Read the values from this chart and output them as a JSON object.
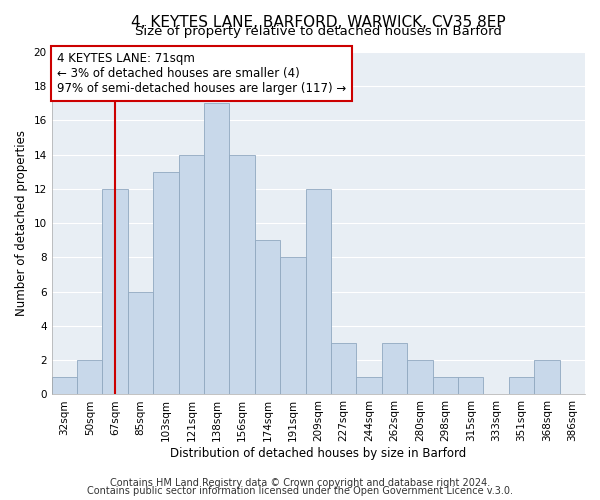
{
  "title": "4, KEYTES LANE, BARFORD, WARWICK, CV35 8EP",
  "subtitle": "Size of property relative to detached houses in Barford",
  "xlabel": "Distribution of detached houses by size in Barford",
  "ylabel": "Number of detached properties",
  "bar_color": "#c8d8ea",
  "bar_edge_color": "#90a8c0",
  "categories": [
    "32sqm",
    "50sqm",
    "67sqm",
    "85sqm",
    "103sqm",
    "121sqm",
    "138sqm",
    "156sqm",
    "174sqm",
    "191sqm",
    "209sqm",
    "227sqm",
    "244sqm",
    "262sqm",
    "280sqm",
    "298sqm",
    "315sqm",
    "333sqm",
    "351sqm",
    "368sqm",
    "386sqm"
  ],
  "values": [
    1,
    2,
    12,
    6,
    13,
    14,
    17,
    14,
    9,
    8,
    12,
    3,
    1,
    3,
    2,
    1,
    1,
    0,
    1,
    2,
    0
  ],
  "vline_x": 2,
  "vline_color": "#cc0000",
  "annotation_text": "4 KEYTES LANE: 71sqm\n← 3% of detached houses are smaller (4)\n97% of semi-detached houses are larger (117) →",
  "annotation_box_color": "#ffffff",
  "annotation_box_edge": "#cc0000",
  "ylim": [
    0,
    20
  ],
  "yticks": [
    0,
    2,
    4,
    6,
    8,
    10,
    12,
    14,
    16,
    18,
    20
  ],
  "footer1": "Contains HM Land Registry data © Crown copyright and database right 2024.",
  "footer2": "Contains public sector information licensed under the Open Government Licence v.3.0.",
  "background_color": "#ffffff",
  "plot_bg_color": "#e8eef4",
  "grid_color": "#ffffff",
  "title_fontsize": 11,
  "subtitle_fontsize": 9.5,
  "axis_label_fontsize": 8.5,
  "tick_fontsize": 7.5,
  "annotation_fontsize": 8.5,
  "footer_fontsize": 7
}
